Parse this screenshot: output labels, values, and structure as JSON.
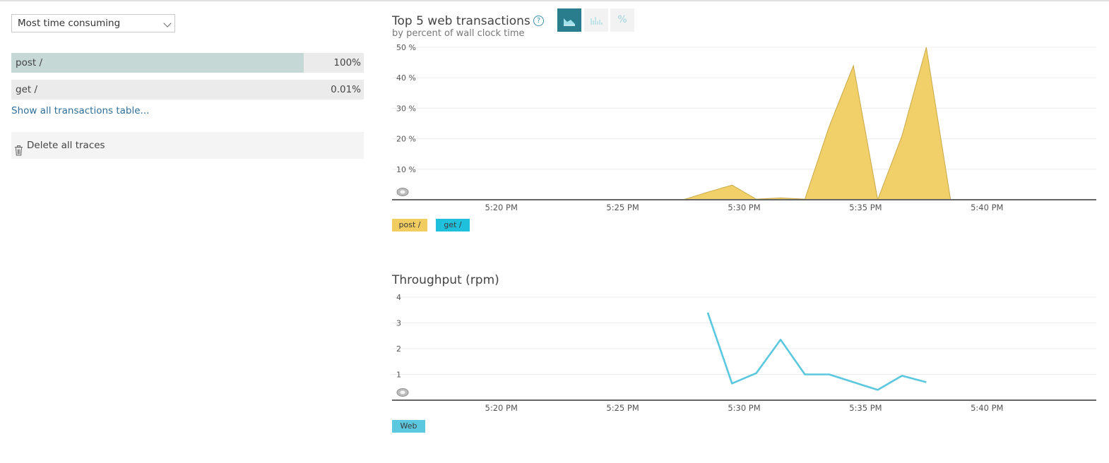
{
  "filter": {
    "selected": "Most time consuming"
  },
  "transactions": [
    {
      "name": "post /",
      "percent_label": "100%",
      "fill": 0.83
    },
    {
      "name": "get /",
      "percent_label": "0.01%",
      "fill": 0.0
    }
  ],
  "links": {
    "show_all": "Show all transactions table..."
  },
  "actions": {
    "delete_traces": "Delete all traces"
  },
  "colors": {
    "post": "#f0cc61",
    "get": "#1fc0dc",
    "web": "#5bc8df",
    "accent": "#2a7d8c"
  },
  "chart_data": [
    {
      "type": "area",
      "title": "Top 5 web transactions",
      "subtitle": "by percent of wall clock time",
      "view_toggle_icons": [
        "area-chart-icon",
        "bar-chart-icon",
        "percent-icon"
      ],
      "view_toggle_labels": [
        "",
        "",
        "%"
      ],
      "active_view": "area",
      "y_ticks": [
        "10 %",
        "20 %",
        "30 %",
        "40 %",
        "50 %"
      ],
      "y_tick_values": [
        10,
        20,
        30,
        40,
        50
      ],
      "ylim": [
        0,
        50
      ],
      "x_tick_labels": [
        "5:20 PM",
        "5:25 PM",
        "5:30 PM",
        "5:35 PM",
        "5:40 PM"
      ],
      "x_tick_minutes": [
        20,
        25,
        30,
        35,
        40
      ],
      "xlim_minutes": [
        15.5,
        44.5
      ],
      "grid": true,
      "legend_placement": "bottom-left",
      "series": [
        {
          "name": "post /",
          "color": "#f0cc61",
          "minute": [
            15.5,
            27.5,
            28.5,
            29.5,
            30.5,
            31.5,
            32.5,
            33.5,
            34.5,
            35.5,
            36.5,
            37.5,
            38.5,
            44.5
          ],
          "values": [
            0,
            0,
            2.5,
            4.8,
            0.2,
            0.6,
            0.2,
            24,
            44,
            0,
            21,
            50,
            0,
            0
          ]
        },
        {
          "name": "get /",
          "color": "#1fc0dc",
          "minute": [],
          "values": []
        }
      ]
    },
    {
      "type": "line",
      "title": "Throughput (rpm)",
      "y_ticks": [
        "1",
        "2",
        "3",
        "4"
      ],
      "y_tick_values": [
        1,
        2,
        3,
        4
      ],
      "ylim": [
        0,
        4
      ],
      "x_tick_labels": [
        "5:20 PM",
        "5:25 PM",
        "5:30 PM",
        "5:35 PM",
        "5:40 PM"
      ],
      "x_tick_minutes": [
        20,
        25,
        30,
        35,
        40
      ],
      "xlim_minutes": [
        15.5,
        44.5
      ],
      "grid": true,
      "legend_placement": "bottom-left",
      "series": [
        {
          "name": "Web",
          "color": "#5bc8df",
          "minute": [
            28.5,
            29.5,
            30.5,
            31.5,
            32.5,
            33.5,
            34.5,
            35.5,
            36.5,
            37.5
          ],
          "values": [
            3.4,
            0.65,
            1.05,
            2.35,
            1.0,
            1.0,
            0.7,
            0.4,
            0.95,
            0.7
          ]
        }
      ]
    }
  ]
}
